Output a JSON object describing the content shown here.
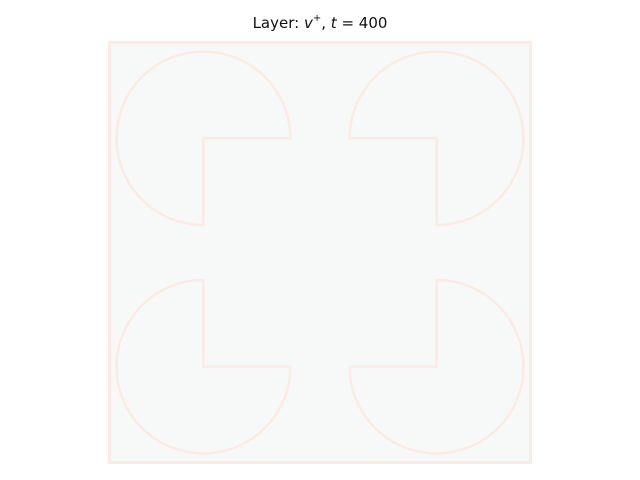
{
  "chart_data": {
    "type": "heatmap",
    "title": {
      "prefix": "Layer: ",
      "variable": "v",
      "superscript": "+",
      "separator": ", ",
      "time_symbol": "t",
      "equals": " = ",
      "time_value": "400"
    },
    "xlabel": "",
    "ylabel": "",
    "axes_visible": false,
    "grid": false,
    "legend": "none",
    "background_color": "#f7f9f9",
    "edge_color": "#fdebe3",
    "description_of_field": "near-uniform field with faint boundary ridge along a square frame and four clover-like lobes",
    "shapes": [
      {
        "name": "lobe-top-left",
        "center": [
          0.225,
          0.77
        ],
        "radius": 0.205,
        "gap": "bottom-right"
      },
      {
        "name": "lobe-top-right",
        "center": [
          0.775,
          0.77
        ],
        "radius": 0.205,
        "gap": "bottom-left"
      },
      {
        "name": "lobe-bottom-left",
        "center": [
          0.225,
          0.23
        ],
        "radius": 0.205,
        "gap": "top-right"
      },
      {
        "name": "lobe-bottom-right",
        "center": [
          0.775,
          0.23
        ],
        "radius": 0.205,
        "gap": "top-left"
      }
    ],
    "inner_corners": [
      {
        "name": "corner-top-left",
        "point": [
          0.225,
          0.77
        ]
      },
      {
        "name": "corner-top-right",
        "point": [
          0.775,
          0.77
        ]
      },
      {
        "name": "corner-bottom-left",
        "point": [
          0.225,
          0.23
        ]
      },
      {
        "name": "corner-bottom-right",
        "point": [
          0.775,
          0.23
        ]
      }
    ]
  }
}
